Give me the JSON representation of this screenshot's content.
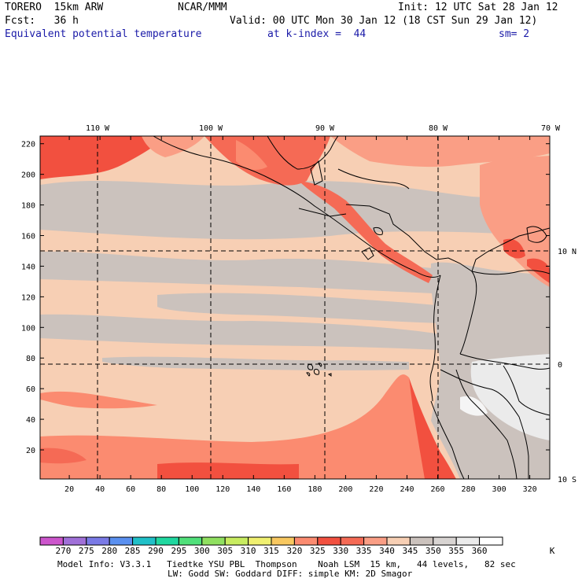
{
  "header": {
    "model": "TORERO  15km ARW",
    "center": "NCAR/MMM",
    "init": "Init: 12 UTC Sat 28 Jan 12",
    "fcst": "Fcst:   36 h",
    "valid": "Valid: 00 UTC Mon 30 Jan 12 (18 CST Sun 29 Jan 12)",
    "field": "Equivalent potential temperature",
    "level": "at k-index =  44",
    "smooth": "sm= 2"
  },
  "map": {
    "lon_labels": [
      "110 W",
      "100 W",
      "90 W",
      "80 W",
      "70 W"
    ],
    "lat_labels": [
      "10 N",
      "0",
      "10 S"
    ],
    "y_ticks": [
      20,
      40,
      60,
      80,
      100,
      120,
      140,
      160,
      180,
      200,
      220
    ],
    "x_ticks": [
      20,
      40,
      60,
      80,
      100,
      120,
      140,
      160,
      180,
      200,
      220,
      240,
      260,
      280,
      300,
      320
    ],
    "dominant_colors": {
      "land_warm": "#f2503f",
      "field_330": "#fb8b70",
      "field_340": "#f7cfb4",
      "field_345": "#cbc2bd",
      "field_355": "#ebebeb"
    }
  },
  "colorbar": {
    "labels": [
      "270",
      "275",
      "280",
      "285",
      "290",
      "295",
      "300",
      "305",
      "310",
      "315",
      "320",
      "325",
      "330",
      "335",
      "340",
      "345",
      "350",
      "355",
      "360"
    ],
    "unit": "K",
    "colors": [
      "#cc55cc",
      "#a070d8",
      "#7a7ae6",
      "#5a90f0",
      "#20c0c8",
      "#20d8a0",
      "#50e07a",
      "#90e060",
      "#c8ec60",
      "#f0f070",
      "#f8c860",
      "#fb8b70",
      "#f2503f",
      "#f56a55",
      "#fa9e85",
      "#f7cfb4",
      "#cbc2bd",
      "#d8d4d2",
      "#ebebeb",
      "#ffffff"
    ]
  },
  "footer": {
    "line1": "Model Info: V3.3.1   Tiedtke YSU PBL  Thompson    Noah LSM  15 km,   44 levels,   82 sec",
    "line2": "LW: Godd SW: Goddard DIFF: simple KM: 2D Smagor"
  }
}
